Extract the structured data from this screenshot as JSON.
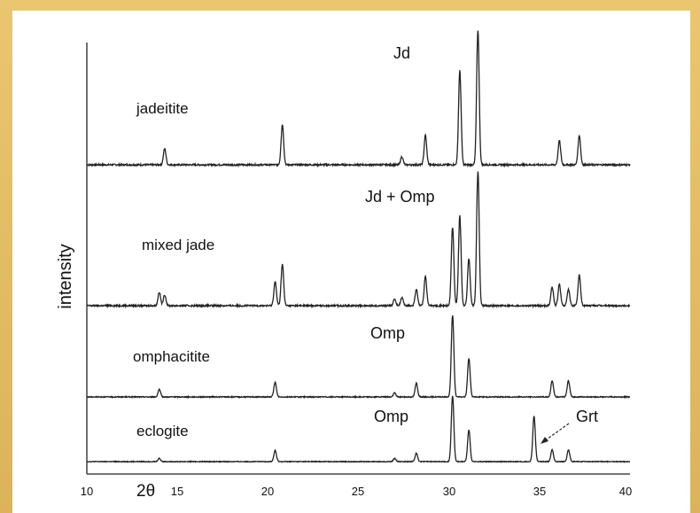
{
  "chart_data": {
    "type": "line",
    "xlabel": "2θ",
    "ylabel": "intensity",
    "xlim": [
      10,
      40
    ],
    "x_ticks": [
      "10",
      "15",
      "20",
      "25",
      "30",
      "35",
      "40"
    ],
    "grid": false,
    "series": [
      {
        "name": "jadeitite",
        "baseline": 0,
        "annotation": "Jd",
        "peaks": [
          {
            "x": 14.3,
            "h": 0.12
          },
          {
            "x": 20.8,
            "h": 0.3
          },
          {
            "x": 27.4,
            "h": 0.06
          },
          {
            "x": 28.7,
            "h": 0.22
          },
          {
            "x": 30.6,
            "h": 0.7
          },
          {
            "x": 31.6,
            "h": 1.0
          },
          {
            "x": 36.1,
            "h": 0.18
          },
          {
            "x": 37.2,
            "h": 0.22
          }
        ]
      },
      {
        "name": "mixed jade",
        "annotation": "Jd + Omp",
        "peaks": [
          {
            "x": 14.0,
            "h": 0.1
          },
          {
            "x": 14.3,
            "h": 0.08
          },
          {
            "x": 20.4,
            "h": 0.18
          },
          {
            "x": 20.8,
            "h": 0.31
          },
          {
            "x": 27.0,
            "h": 0.05
          },
          {
            "x": 27.4,
            "h": 0.06
          },
          {
            "x": 28.2,
            "h": 0.12
          },
          {
            "x": 28.7,
            "h": 0.22
          },
          {
            "x": 30.2,
            "h": 0.58
          },
          {
            "x": 30.6,
            "h": 0.67
          },
          {
            "x": 31.1,
            "h": 0.35
          },
          {
            "x": 31.6,
            "h": 1.0
          },
          {
            "x": 35.7,
            "h": 0.14
          },
          {
            "x": 36.1,
            "h": 0.16
          },
          {
            "x": 36.6,
            "h": 0.12
          },
          {
            "x": 37.2,
            "h": 0.23
          }
        ]
      },
      {
        "name": "omphacitite",
        "annotation": "Omp",
        "peaks": [
          {
            "x": 14.0,
            "h": 0.09
          },
          {
            "x": 20.4,
            "h": 0.18
          },
          {
            "x": 27.0,
            "h": 0.05
          },
          {
            "x": 28.2,
            "h": 0.17
          },
          {
            "x": 30.2,
            "h": 1.0
          },
          {
            "x": 31.1,
            "h": 0.47
          },
          {
            "x": 35.7,
            "h": 0.2
          },
          {
            "x": 36.6,
            "h": 0.2
          }
        ]
      },
      {
        "name": "eclogite",
        "annotation": "Omp",
        "annotation_2": "Grt",
        "peaks": [
          {
            "x": 14.0,
            "h": 0.05
          },
          {
            "x": 20.4,
            "h": 0.17
          },
          {
            "x": 27.0,
            "h": 0.05
          },
          {
            "x": 28.2,
            "h": 0.13
          },
          {
            "x": 30.2,
            "h": 1.0
          },
          {
            "x": 31.1,
            "h": 0.48
          },
          {
            "x": 34.7,
            "h": 0.7
          },
          {
            "x": 35.7,
            "h": 0.18
          },
          {
            "x": 36.6,
            "h": 0.18
          }
        ]
      }
    ]
  },
  "colors": {
    "background": "#e8c26a",
    "panel": "#ffffff",
    "trace": "#222222"
  }
}
